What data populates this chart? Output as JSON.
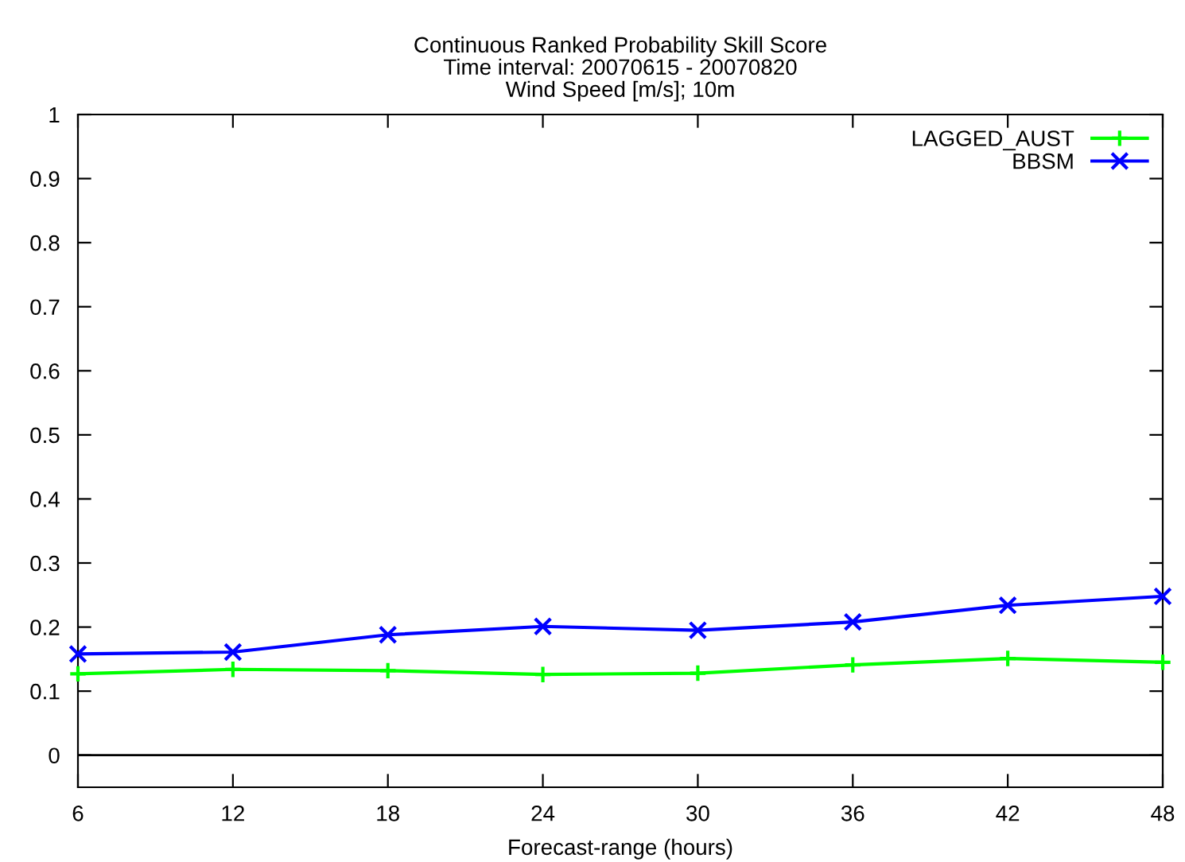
{
  "chart_data": {
    "type": "line",
    "title": "Continuous Ranked Probability Skill Score\nTime interval: 20070615 - 20070820\nWind Speed [m/s]; 10m",
    "xlabel": "Forecast-range (hours)",
    "x": [
      6,
      12,
      18,
      24,
      30,
      36,
      42,
      48
    ],
    "series": [
      {
        "name": "LAGGED_AUST",
        "color": "#00ff00",
        "marker": "plus",
        "values": [
          0.127,
          0.134,
          0.132,
          0.126,
          0.128,
          0.141,
          0.151,
          0.145
        ]
      },
      {
        "name": "BBSM",
        "color": "#0000ff",
        "marker": "cross",
        "values": [
          0.158,
          0.161,
          0.188,
          0.201,
          0.195,
          0.208,
          0.234,
          0.248
        ]
      }
    ],
    "xlim": [
      6,
      48
    ],
    "xticks": [
      6,
      12,
      18,
      24,
      30,
      36,
      42,
      48
    ],
    "ylim": [
      -0.05,
      1
    ],
    "yticks": [
      0,
      0.1,
      0.2,
      0.3,
      0.4,
      0.5,
      0.6,
      0.7,
      0.8,
      0.9,
      1
    ],
    "ref_lines": [
      {
        "axis": "y",
        "value": 0,
        "label": null,
        "color": "#000000"
      }
    ],
    "grid": false,
    "legend": "top right",
    "line_style": "solid"
  }
}
